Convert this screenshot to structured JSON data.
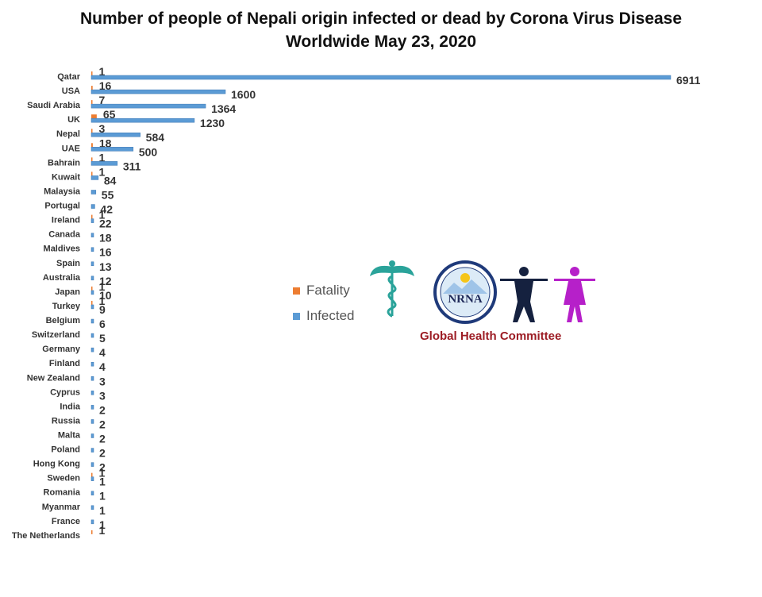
{
  "title_line1": "Number of people of Nepali origin infected or dead by Corona Virus Disease",
  "title_line2": "Worldwide May 23, 2020",
  "colors": {
    "fatality": "#ed7d31",
    "infected": "#5b9bd5",
    "text": "#333333"
  },
  "logo": {
    "emblem_text": "NRNA",
    "caption": "Global Health Committee"
  },
  "chart_data": {
    "type": "bar",
    "orientation": "horizontal",
    "categories": [
      "Qatar",
      "USA",
      "Saudi Arabia",
      "UK",
      "Nepal",
      "UAE",
      "Bahrain",
      "Kuwait",
      "Malaysia",
      "Portugal",
      "Ireland",
      "Canada",
      "Maldives",
      "Spain",
      "Australia",
      "Japan",
      "Turkey",
      "Belgium",
      "Switzerland",
      "Germany",
      "Finland",
      "New Zealand",
      "Cyprus",
      "India",
      "Russia",
      "Malta",
      "Poland",
      "Hong Kong",
      "Sweden",
      "Romania",
      "Myanmar",
      "France",
      "The Netherlands"
    ],
    "series": [
      {
        "name": "Fatality",
        "color": "#ed7d31",
        "values": [
          1,
          16,
          7,
          65,
          3,
          18,
          1,
          1,
          null,
          null,
          1,
          null,
          null,
          null,
          null,
          1,
          1,
          null,
          null,
          null,
          null,
          null,
          null,
          null,
          null,
          null,
          null,
          null,
          1,
          null,
          null,
          null,
          1
        ]
      },
      {
        "name": "Infected",
        "color": "#5b9bd5",
        "values": [
          6911,
          1600,
          1364,
          1230,
          584,
          500,
          311,
          84,
          55,
          42,
          22,
          18,
          16,
          13,
          12,
          10,
          9,
          6,
          5,
          4,
          4,
          3,
          3,
          2,
          2,
          2,
          2,
          2,
          1,
          1,
          1,
          1,
          null
        ]
      }
    ],
    "xlim": [
      0,
      7000
    ],
    "legend_position": "center",
    "grid": false
  }
}
